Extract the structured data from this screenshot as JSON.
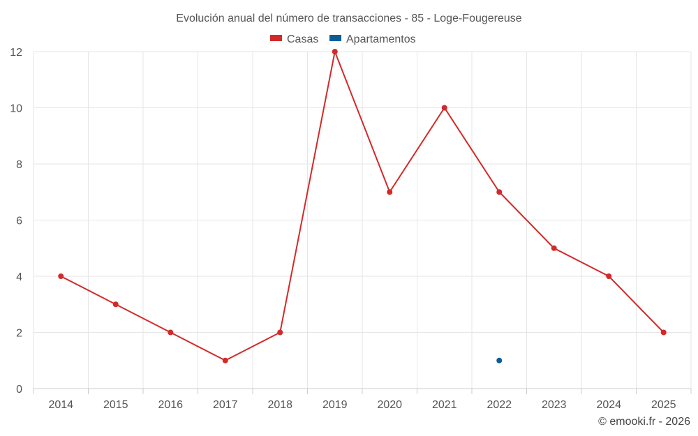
{
  "chart_data": {
    "type": "line",
    "title": "Evolución anual del número de transacciones - 85 - Loge-Fougereuse",
    "categories": [
      "2014",
      "2015",
      "2016",
      "2017",
      "2018",
      "2019",
      "2020",
      "2021",
      "2022",
      "2023",
      "2024",
      "2025"
    ],
    "series": [
      {
        "name": "Casas",
        "color": "#d22a2a",
        "values": [
          4,
          3,
          2,
          1,
          2,
          12,
          7,
          10,
          7,
          5,
          4,
          2
        ]
      },
      {
        "name": "Apartamentos",
        "color": "#0b5c99",
        "values": [
          null,
          null,
          null,
          null,
          null,
          null,
          null,
          null,
          1,
          null,
          null,
          null
        ]
      }
    ],
    "ylim": [
      0,
      12
    ],
    "yticks": [
      0,
      2,
      4,
      6,
      8,
      10,
      12
    ],
    "grid": true,
    "legend": "top-center",
    "xlabel": "",
    "ylabel": ""
  },
  "credit": "© emooki.fr - 2026"
}
